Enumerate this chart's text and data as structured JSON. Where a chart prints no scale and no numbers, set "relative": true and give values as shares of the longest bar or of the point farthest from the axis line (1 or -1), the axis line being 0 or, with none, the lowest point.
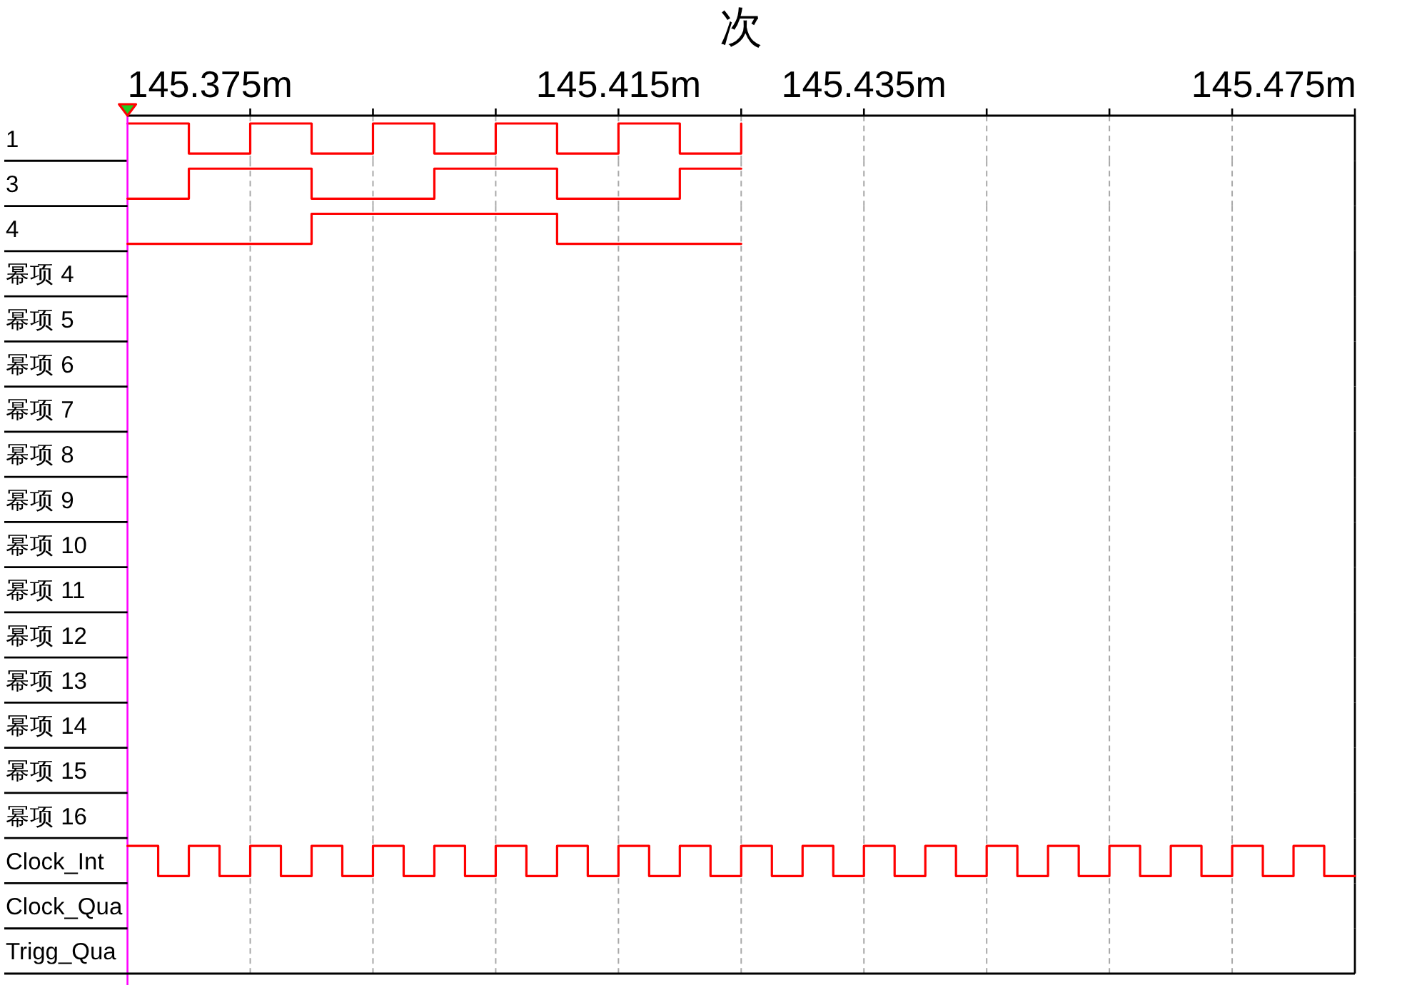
{
  "chart_data": [
    {
      "type": "step",
      "title": "次",
      "ylabel": "1",
      "relative": true,
      "color": "#ff0000",
      "x": [
        145.375,
        145.38,
        145.385,
        145.39,
        145.395,
        145.4,
        145.405,
        145.41,
        145.415,
        145.42,
        145.425
      ],
      "values": [
        1,
        0,
        1,
        0,
        1,
        0,
        1,
        0,
        1,
        0,
        1
      ],
      "xlim": [
        145.375,
        145.475
      ],
      "xticks": [
        {
          "value": 145.375,
          "label": "145.375m"
        },
        {
          "value": 145.385,
          "label": null
        },
        {
          "value": 145.395,
          "label": null
        },
        {
          "value": 145.405,
          "label": null
        },
        {
          "value": 145.415,
          "label": "145.415m"
        },
        {
          "value": 145.425,
          "label": null
        },
        {
          "value": 145.435,
          "label": "145.435m"
        },
        {
          "value": 145.445,
          "label": null
        },
        {
          "value": 145.455,
          "label": null
        },
        {
          "value": 145.465,
          "label": null
        },
        {
          "value": 145.475,
          "label": "145.475m"
        }
      ],
      "tick_labels": "x",
      "grid": "x",
      "ref_lines": [
        {
          "axis": "x",
          "value": 145.375,
          "color": "#ff00ff"
        }
      ]
    },
    {
      "type": "step",
      "ylabel": "3",
      "relative": true,
      "color": "#ff0000",
      "x": [
        145.375,
        145.38,
        145.39,
        145.4,
        145.41,
        145.42,
        145.425
      ],
      "values": [
        0,
        1,
        0,
        1,
        0,
        1,
        1
      ],
      "xlim": [
        145.375,
        145.475
      ],
      "xticks": [
        145.375,
        145.385,
        145.395,
        145.405,
        145.415,
        145.425,
        145.435,
        145.445,
        145.455,
        145.465,
        145.475
      ],
      "tick_labels": false,
      "grid": "x"
    },
    {
      "type": "step",
      "ylabel": "4",
      "relative": true,
      "color": "#ff0000",
      "x": [
        145.375,
        145.39,
        145.41,
        145.425
      ],
      "values": [
        0,
        1,
        0,
        0
      ],
      "xlim": [
        145.375,
        145.475
      ],
      "xticks": [
        145.375,
        145.385,
        145.395,
        145.405,
        145.415,
        145.425,
        145.435,
        145.445,
        145.455,
        145.465,
        145.475
      ],
      "tick_labels": false,
      "grid": "x"
    },
    {
      "type": "other",
      "ylabel": "幂项 4"
    },
    {
      "type": "other",
      "ylabel": "幂项 5"
    },
    {
      "type": "other",
      "ylabel": "幂项 6"
    },
    {
      "type": "other",
      "ylabel": "幂项 7"
    },
    {
      "type": "other",
      "ylabel": "幂项 8"
    },
    {
      "type": "other",
      "ylabel": "幂项 9"
    },
    {
      "type": "other",
      "ylabel": "幂项 10"
    },
    {
      "type": "other",
      "ylabel": "幂项 11"
    },
    {
      "type": "other",
      "ylabel": "幂项 12"
    },
    {
      "type": "other",
      "ylabel": "幂项 13"
    },
    {
      "type": "other",
      "ylabel": "幂项 14"
    },
    {
      "type": "other",
      "ylabel": "幂项 15"
    },
    {
      "type": "other",
      "ylabel": "幂项 16"
    },
    {
      "type": "step",
      "ylabel": "Clock_Int",
      "relative": true,
      "color": "#ff0000",
      "x": [
        145.375,
        145.3775,
        145.38,
        145.3825,
        145.385,
        145.3875,
        145.39,
        145.3925,
        145.395,
        145.3975,
        145.4,
        145.4025,
        145.405,
        145.4075,
        145.41,
        145.4125,
        145.415,
        145.4175,
        145.42,
        145.4225,
        145.425,
        145.4275,
        145.43,
        145.4325,
        145.435,
        145.4375,
        145.44,
        145.4425,
        145.445,
        145.4475,
        145.45,
        145.4525,
        145.455,
        145.4575,
        145.46,
        145.4625,
        145.465,
        145.4675,
        145.47,
        145.4725,
        145.475
      ],
      "values": [
        1,
        0,
        1,
        0,
        1,
        0,
        1,
        0,
        1,
        0,
        1,
        0,
        1,
        0,
        1,
        0,
        1,
        0,
        1,
        0,
        1,
        0,
        1,
        0,
        1,
        0,
        1,
        0,
        1,
        0,
        1,
        0,
        1,
        0,
        1,
        0,
        1,
        0,
        1,
        0,
        0
      ],
      "xlim": [
        145.375,
        145.475
      ],
      "xticks": [
        145.375,
        145.385,
        145.395,
        145.405,
        145.415,
        145.425,
        145.435,
        145.445,
        145.455,
        145.465,
        145.475
      ],
      "tick_labels": false,
      "grid": "x"
    },
    {
      "type": "other",
      "ylabel": "Clock_Qua"
    },
    {
      "type": "other",
      "ylabel": "Trigg_Qua"
    }
  ]
}
